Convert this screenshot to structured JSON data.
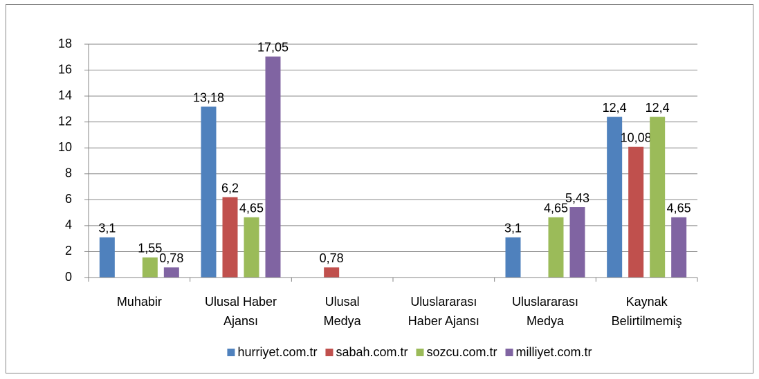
{
  "chart_data": {
    "type": "bar",
    "categories": [
      [
        "Muhabir"
      ],
      [
        "Ulusal Haber",
        "Ajansı"
      ],
      [
        "Ulusal",
        "Medya"
      ],
      [
        "Uluslararası",
        "Haber Ajansı"
      ],
      [
        "Uluslararası",
        "Medya"
      ],
      [
        "Kaynak",
        "Belirtilmemiş"
      ]
    ],
    "series": [
      {
        "name": "hurriyet.com.tr",
        "color": "#4f81bd",
        "values": [
          3.1,
          13.18,
          null,
          null,
          3.1,
          12.4
        ],
        "value_labels": [
          "3,1",
          "13,18",
          null,
          null,
          "3,1",
          "12,4"
        ]
      },
      {
        "name": "sabah.com.tr",
        "color": "#c0504d",
        "values": [
          null,
          6.2,
          0.78,
          null,
          null,
          10.08
        ],
        "value_labels": [
          null,
          "6,2",
          "0,78",
          null,
          null,
          "10,08"
        ]
      },
      {
        "name": "sozcu.com.tr",
        "color": "#9bbb59",
        "values": [
          1.55,
          4.65,
          null,
          null,
          4.65,
          12.4
        ],
        "value_labels": [
          "1,55",
          "4,65",
          null,
          null,
          "4,65",
          "12,4"
        ]
      },
      {
        "name": "milliyet.com.tr",
        "color": "#8064a2",
        "values": [
          0.78,
          17.05,
          null,
          null,
          5.43,
          4.65
        ],
        "value_labels": [
          "0,78",
          "17,05",
          null,
          null,
          "5,43",
          "4,65"
        ]
      }
    ],
    "ylim": [
      0,
      18
    ],
    "yticks": [
      0,
      2,
      4,
      6,
      8,
      10,
      12,
      14,
      16,
      18
    ],
    "grid": true,
    "legend": "bottom"
  }
}
